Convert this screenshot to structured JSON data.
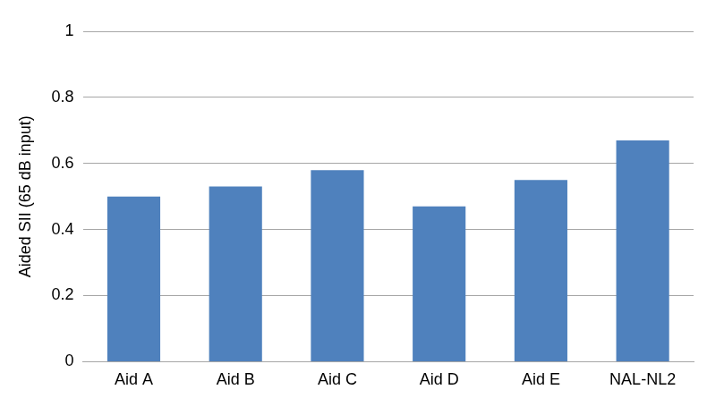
{
  "chart_data": {
    "type": "bar",
    "y_label": "Aided SII (65 dB input)",
    "categories": [
      "Aid A",
      "Aid B",
      "Aid C",
      "Aid D",
      "Aid E",
      "NAL-NL2"
    ],
    "values": [
      0.5,
      0.53,
      0.58,
      0.47,
      0.55,
      0.67
    ],
    "color": "#4f81bd",
    "ylim": [
      0,
      1
    ],
    "yticks": [
      0,
      0.2,
      0.4,
      0.6,
      0.8,
      1
    ],
    "grid": true
  }
}
